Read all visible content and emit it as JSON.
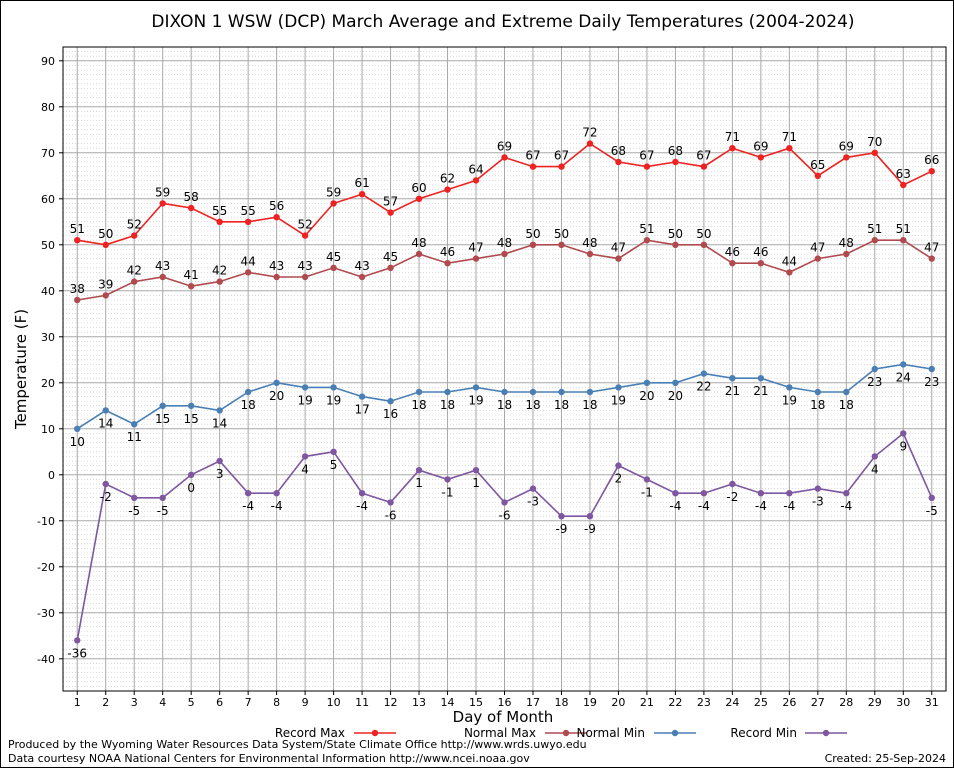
{
  "chart_data": {
    "type": "line",
    "title": "DIXON 1 WSW (DCP) March Average and Extreme Daily Temperatures (2004-2024)",
    "xlabel": "Day of Month",
    "ylabel": "Temperature (F)",
    "ylim": [
      -47,
      93
    ],
    "yticks": [
      -40,
      -30,
      -20,
      -10,
      0,
      10,
      20,
      30,
      40,
      50,
      60,
      70,
      80,
      90
    ],
    "x": [
      1,
      2,
      3,
      4,
      5,
      6,
      7,
      8,
      9,
      10,
      11,
      12,
      13,
      14,
      15,
      16,
      17,
      18,
      19,
      20,
      21,
      22,
      23,
      24,
      25,
      26,
      27,
      28,
      29,
      30,
      31
    ],
    "grid": true,
    "legend_placement": "bottom",
    "series": [
      {
        "name": "Record Max",
        "color": "#ee2222",
        "values": [
          51,
          50,
          52,
          59,
          58,
          55,
          55,
          56,
          52,
          59,
          61,
          57,
          60,
          62,
          64,
          69,
          67,
          67,
          72,
          68,
          67,
          68,
          67,
          71,
          69,
          71,
          65,
          69,
          70,
          63,
          66
        ],
        "label_below": []
      },
      {
        "name": "Normal Max",
        "color": "#b04a4e",
        "values": [
          38,
          39,
          42,
          43,
          41,
          42,
          44,
          43,
          43,
          45,
          43,
          45,
          48,
          46,
          47,
          48,
          50,
          50,
          48,
          47,
          51,
          50,
          50,
          46,
          46,
          44,
          47,
          48,
          51,
          51,
          47
        ],
        "label_below": []
      },
      {
        "name": "Normal Min",
        "color": "#4a7fb5",
        "values": [
          10,
          14,
          11,
          15,
          15,
          14,
          18,
          20,
          19,
          19,
          17,
          16,
          18,
          18,
          19,
          18,
          18,
          18,
          18,
          19,
          20,
          20,
          22,
          21,
          21,
          19,
          18,
          18,
          23,
          24,
          23
        ],
        "label_below": [
          1,
          2,
          3,
          4,
          5,
          6,
          7,
          8,
          9,
          10,
          11,
          12,
          13,
          14,
          15,
          16,
          17,
          18,
          19,
          20,
          21,
          22,
          23,
          24,
          25,
          26,
          27,
          28,
          29,
          30,
          31
        ]
      },
      {
        "name": "Record Min",
        "color": "#7e57a0",
        "values": [
          -36,
          -2,
          -5,
          -5,
          0,
          3,
          -4,
          -4,
          4,
          5,
          -4,
          -6,
          1,
          -1,
          1,
          -6,
          -3,
          -9,
          -9,
          2,
          -1,
          -4,
          -4,
          -2,
          -4,
          -4,
          -3,
          -4,
          4,
          9,
          -5
        ],
        "label_below": [
          1,
          2,
          3,
          4,
          5,
          6,
          7,
          8,
          9,
          10,
          11,
          12,
          13,
          14,
          15,
          16,
          17,
          18,
          19,
          20,
          21,
          22,
          23,
          24,
          25,
          26,
          27,
          28,
          29,
          30,
          31
        ]
      }
    ]
  },
  "footer": {
    "produced_by": "Produced by the Wyoming Water Resources Data System/State Climate Office http://www.wrds.uwyo.edu",
    "courtesy": "Data courtesy NOAA National Centers for Environmental Information http://www.ncei.noaa.gov",
    "created": "Created:  25-Sep-2024"
  }
}
